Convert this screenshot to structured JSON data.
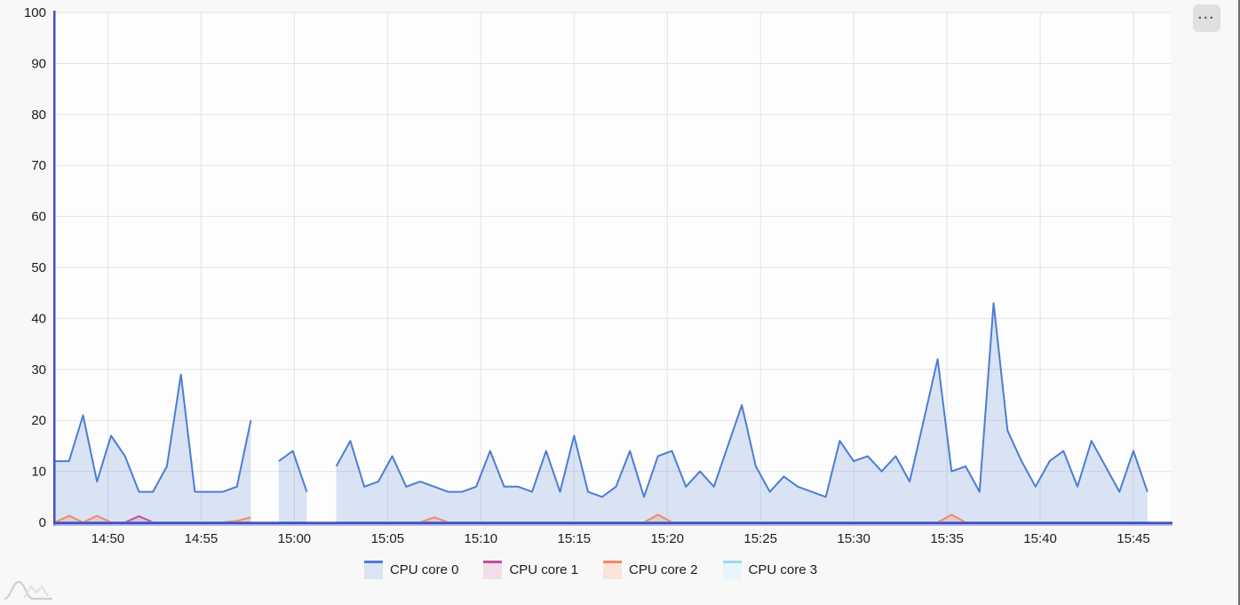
{
  "toolbar": {
    "more_glyph": "···"
  },
  "chart_data": {
    "type": "area",
    "title": "",
    "legend_position": "bottom",
    "grid": true,
    "ylim": [
      0,
      100
    ],
    "y_ticks": [
      0,
      10,
      20,
      30,
      40,
      50,
      60,
      70,
      80,
      90,
      100
    ],
    "x_ticks": [
      "14:50",
      "14:55",
      "15:00",
      "15:05",
      "15:10",
      "15:15",
      "15:20",
      "15:25",
      "15:30",
      "15:35",
      "15:40",
      "15:45"
    ],
    "x_window": {
      "start": "14:47:10",
      "end": "15:47:00"
    },
    "axis_color": "#4350bf",
    "axis_shadow_color": "#a0a9e4",
    "grid_color": "#e3e3e3",
    "plot_background": "#fdfdfd",
    "tick_color": "#1c1c1c",
    "series": [
      {
        "name": "CPU core 0",
        "color": "#4d7dd3",
        "fill": "rgba(77,125,211,0.2)",
        "legend_fill": "#dbe4f5",
        "segments": [
          {
            "start": "14:47:10",
            "interval_s": 45,
            "values": [
              12,
              12,
              21,
              8,
              17,
              13,
              6,
              6,
              11,
              29,
              6,
              6,
              6,
              7,
              20
            ]
          },
          {
            "start": "14:59:10",
            "interval_s": 45,
            "values": [
              12,
              14,
              6
            ]
          },
          {
            "start": "15:02:15",
            "interval_s": 45,
            "values": [
              11,
              16,
              7,
              8,
              13,
              7,
              8,
              7,
              6,
              6,
              7,
              14,
              7,
              7,
              6,
              14,
              6,
              17,
              6,
              5,
              7,
              14,
              5,
              13,
              14,
              7,
              10,
              7,
              15,
              23,
              11,
              6,
              9,
              7,
              6,
              5,
              16,
              12,
              13,
              10,
              13,
              8,
              20,
              32,
              10,
              11,
              6,
              43,
              18,
              12,
              7,
              12,
              14,
              7,
              16,
              11,
              6,
              14,
              6
            ]
          }
        ]
      },
      {
        "name": "CPU core 1",
        "color": "#c2519f",
        "fill": "rgba(194,81,159,0.2)",
        "legend_fill": "#f3ddeb",
        "segments": [
          {
            "start": "14:47:10",
            "interval_s": 45,
            "length": 15,
            "base": 0,
            "bumps": {
              "6": 1.2
            }
          },
          {
            "start": "14:59:10",
            "interval_s": 45,
            "length": 3,
            "base": 0
          },
          {
            "start": "15:02:15",
            "interval_s": 45,
            "length": 59,
            "base": 0
          }
        ]
      },
      {
        "name": "CPU core 2",
        "color": "#ef8a66",
        "fill": "rgba(239,138,102,0.25)",
        "legend_fill": "#fce3d9",
        "segments": [
          {
            "start": "14:47:10",
            "interval_s": 45,
            "length": 15,
            "base": 0,
            "bumps": {
              "1": 1.3,
              "3": 1.3,
              "13": 0.3,
              "14": 1
            }
          },
          {
            "start": "14:59:10",
            "interval_s": 45,
            "length": 3,
            "base": 0
          },
          {
            "start": "15:02:15",
            "interval_s": 45,
            "length": 59,
            "base": 0,
            "bumps": {
              "7": 1,
              "23": 1.5,
              "44": 1.5
            }
          }
        ]
      },
      {
        "name": "CPU core 3",
        "color": "#9fd8eb",
        "fill": "rgba(159,216,235,0.25)",
        "legend_fill": "#e5f5fb",
        "segments": [
          {
            "start": "14:47:10",
            "interval_s": 45,
            "length": 15,
            "base": 0
          },
          {
            "start": "14:59:10",
            "interval_s": 45,
            "length": 3,
            "base": 0
          },
          {
            "start": "15:02:15",
            "interval_s": 45,
            "length": 59,
            "base": 0
          }
        ]
      }
    ]
  }
}
